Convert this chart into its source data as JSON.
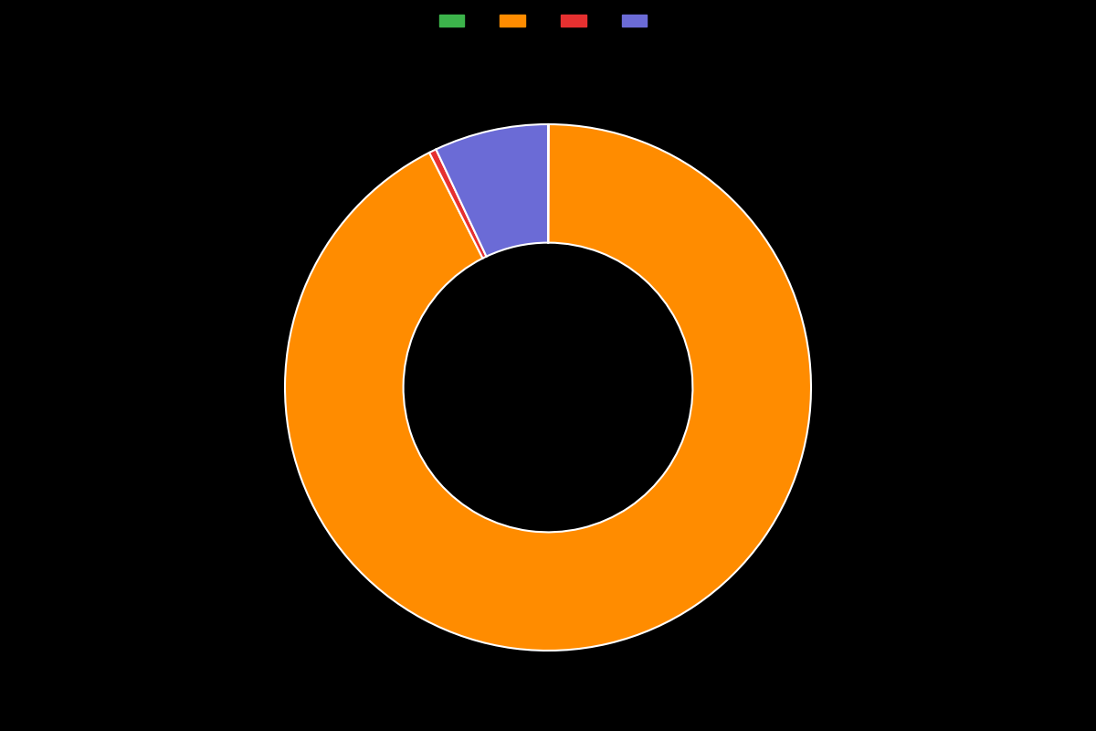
{
  "values": [
    0.05,
    92.5,
    0.45,
    7.0
  ],
  "colors": [
    "#3cb44b",
    "#ff8c00",
    "#e63030",
    "#6b6bd6"
  ],
  "legend_labels": [
    "",
    "",
    "",
    ""
  ],
  "background_color": "#000000",
  "wedge_linewidth": 1.5,
  "wedge_linecolor": "#ffffff",
  "donut_width": 0.45,
  "figsize": [
    12,
    8
  ]
}
